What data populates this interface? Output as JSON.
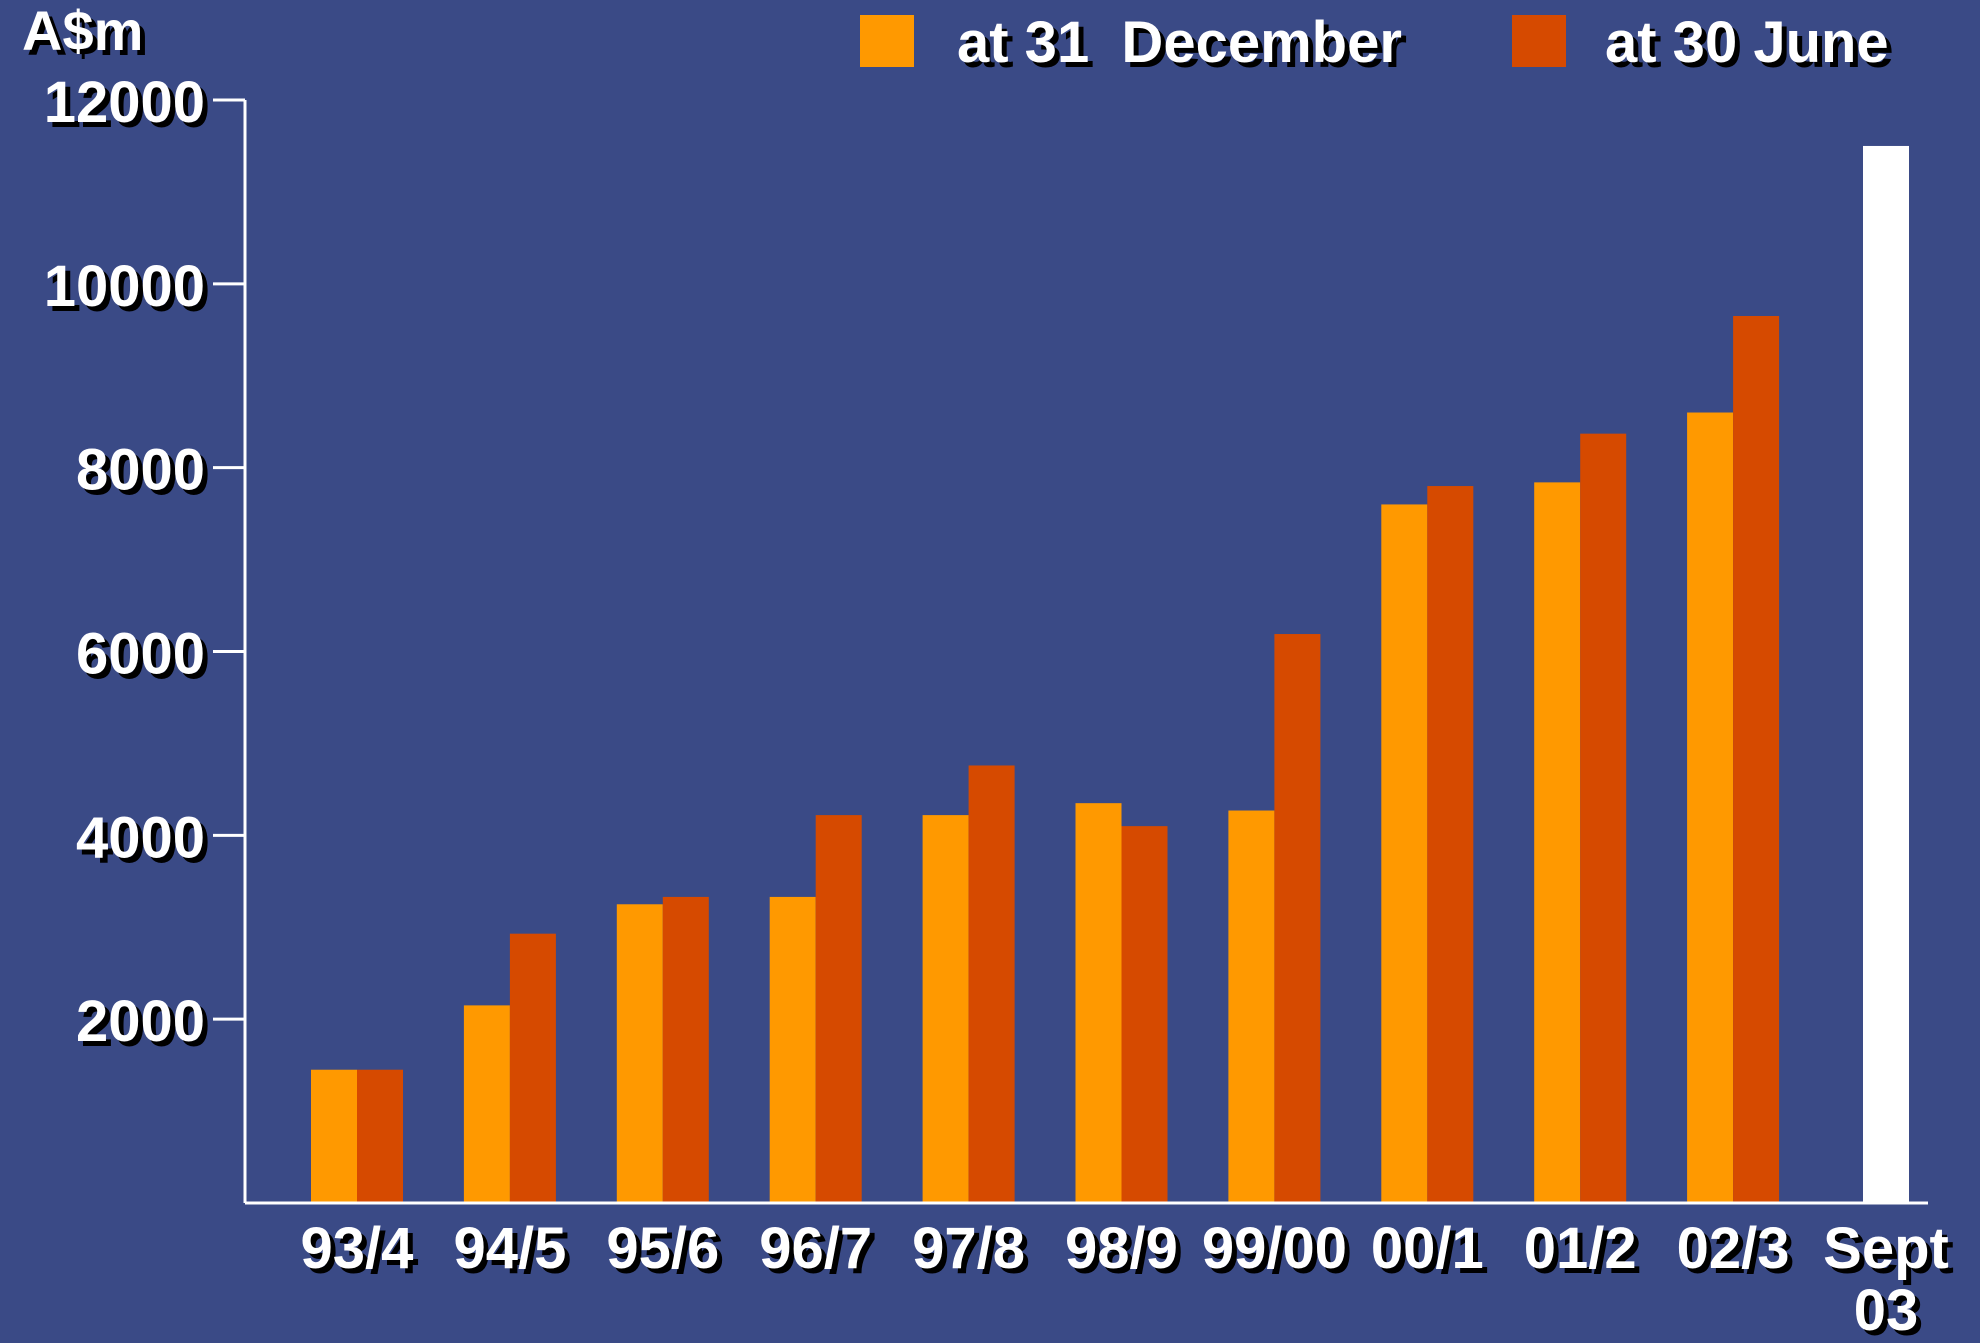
{
  "chart_data": {
    "type": "bar",
    "ylabel": "A$m",
    "ylim": [
      0,
      12000
    ],
    "yticks": [
      2000,
      4000,
      6000,
      8000,
      10000,
      12000
    ],
    "categories": [
      "93/4",
      "94/5",
      "95/6",
      "96/7",
      "97/8",
      "98/9",
      "99/00",
      "00/1",
      "01/2",
      "02/3",
      "Sept 03"
    ],
    "series": [
      {
        "name": "at 31  December",
        "color": "#ff9900",
        "values": [
          1450,
          2150,
          3250,
          3330,
          4220,
          4350,
          4270,
          7600,
          7840,
          8600,
          null
        ]
      },
      {
        "name": "at 30 June",
        "color": "#d64a00",
        "values": [
          1450,
          2930,
          3330,
          4220,
          4760,
          4100,
          6190,
          7800,
          8370,
          9650,
          null
        ]
      },
      {
        "name": "",
        "color": "#ffffff",
        "values": [
          null,
          null,
          null,
          null,
          null,
          null,
          null,
          null,
          null,
          null,
          11500
        ]
      }
    ],
    "grid": false,
    "legend": "top-right"
  }
}
